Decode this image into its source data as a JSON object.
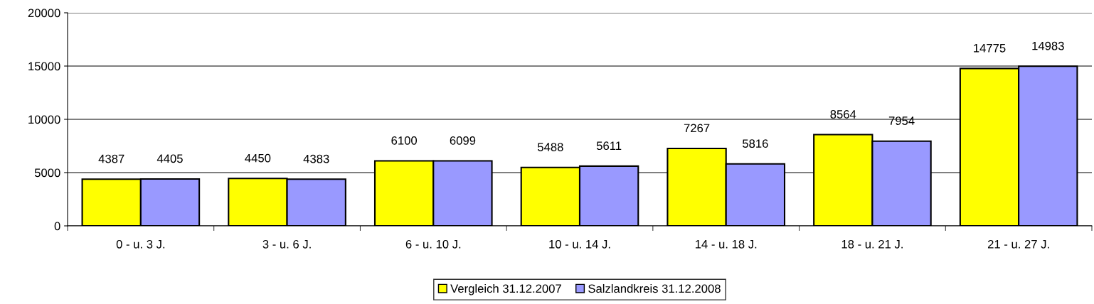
{
  "chart_data": {
    "type": "bar",
    "categories": [
      "0 - u. 3 J.",
      "3 - u. 6 J.",
      "6 - u. 10 J.",
      "10 - u. 14 J.",
      "14 - u. 18 J.",
      "18 - u. 21 J.",
      "21 - u. 27 J."
    ],
    "series": [
      {
        "name": "Vergleich 31.12.2007",
        "color": "#ffff00",
        "values": [
          4387,
          4450,
          6100,
          5488,
          7267,
          8564,
          14775
        ]
      },
      {
        "name": "Salzlandkreis 31.12.2008",
        "color": "#9999ff",
        "values": [
          4405,
          4383,
          6099,
          5611,
          5816,
          7954,
          14983
        ]
      }
    ],
    "ylim": [
      0,
      20000
    ],
    "yticks": [
      0,
      5000,
      10000,
      15000,
      20000
    ],
    "grid": "y",
    "legend": "bottom",
    "data_labels": true
  }
}
